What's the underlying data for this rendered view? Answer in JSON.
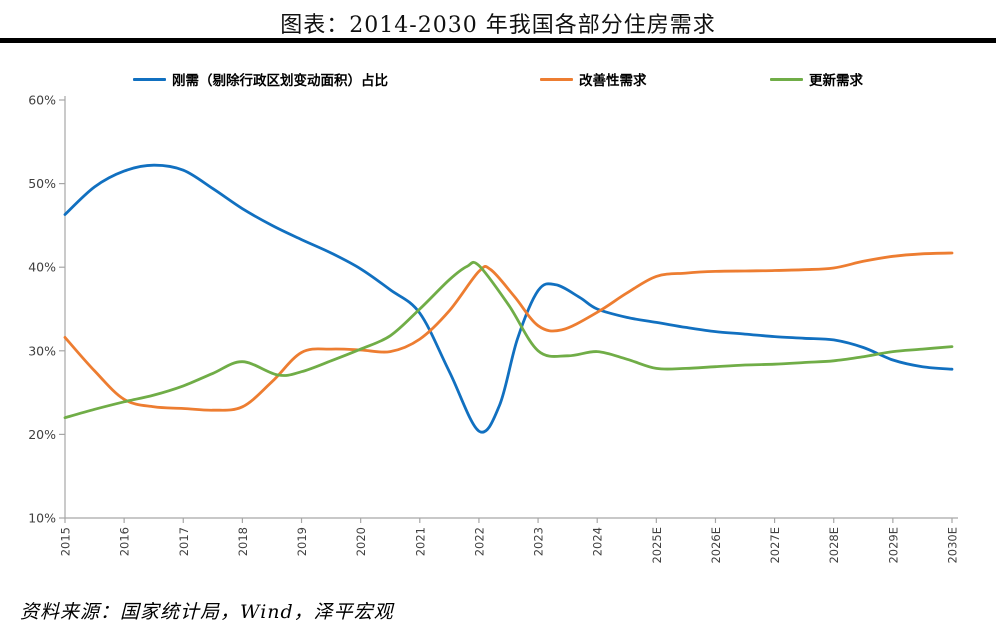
{
  "title": "图表：2014-2030 年我国各部分住房需求",
  "source": "资料来源：国家统计局，Wind，泽平宏观",
  "colors": {
    "series_blue": "#1170C0",
    "series_orange": "#ED7D31",
    "series_green": "#70AD47",
    "axis": "#A6A6A6",
    "tick_label": "#404040",
    "title_rule": "#000000"
  },
  "chart_data": {
    "type": "line",
    "title": "图表：2014-2030 年我国各部分住房需求",
    "smooth": true,
    "grid": false,
    "legend_position": "top",
    "xlabel": "",
    "ylabel": "",
    "x_tick_labels": [
      "2015",
      "2016",
      "2017",
      "2018",
      "2019",
      "2020",
      "2021",
      "2022",
      "2023",
      "2024",
      "2025E",
      "2026E",
      "2027E",
      "2028E",
      "2029E",
      "2030E"
    ],
    "y_tick_labels": [
      "10%",
      "20%",
      "30%",
      "40%",
      "50%",
      "60%"
    ],
    "x_range": [
      2015,
      2030
    ],
    "y_range": [
      10,
      60
    ],
    "y_unit": "%",
    "annual_values": {
      "years": [
        "2015",
        "2016",
        "2017",
        "2018",
        "2019",
        "2020",
        "2021",
        "2022",
        "2023",
        "2024",
        "2025E",
        "2026E",
        "2027E",
        "2028E",
        "2029E",
        "2030E"
      ],
      "刚需（剔除行政区划变动面积）占比": [
        46.3,
        51.5,
        51.6,
        47.0,
        43.3,
        39.8,
        34.5,
        20.4,
        37.2,
        35.0,
        33.4,
        32.3,
        31.7,
        31.3,
        28.9,
        27.8
      ],
      "改善性需求": [
        31.6,
        24.2,
        23.1,
        23.3,
        29.8,
        30.1,
        31.4,
        39.5,
        33.0,
        34.6,
        38.9,
        39.5,
        39.6,
        39.9,
        41.3,
        41.7
      ],
      "更新需求": [
        22.0,
        23.9,
        25.8,
        28.7,
        27.5,
        30.2,
        35.0,
        40.2,
        30.0,
        29.9,
        27.9,
        28.1,
        28.4,
        28.8,
        29.9,
        30.5
      ]
    },
    "series": [
      {
        "name": "刚需（剔除行政区划变动面积）占比",
        "color": "#1170C0",
        "points": [
          [
            2015,
            46.3
          ],
          [
            2015.5,
            49.6
          ],
          [
            2016,
            51.5
          ],
          [
            2016.5,
            52.2
          ],
          [
            2017,
            51.6
          ],
          [
            2017.5,
            49.4
          ],
          [
            2018,
            47.0
          ],
          [
            2018.5,
            45.0
          ],
          [
            2019,
            43.3
          ],
          [
            2019.5,
            41.7
          ],
          [
            2020,
            39.8
          ],
          [
            2020.5,
            37.3
          ],
          [
            2021,
            34.5
          ],
          [
            2021.5,
            27.5
          ],
          [
            2022,
            20.4
          ],
          [
            2022.35,
            23.5
          ],
          [
            2022.65,
            31.4
          ],
          [
            2023,
            37.2
          ],
          [
            2023.3,
            37.9
          ],
          [
            2023.7,
            36.4
          ],
          [
            2024,
            35.0
          ],
          [
            2024.5,
            34.0
          ],
          [
            2025,
            33.4
          ],
          [
            2025.5,
            32.8
          ],
          [
            2026,
            32.3
          ],
          [
            2026.5,
            32.0
          ],
          [
            2027,
            31.7
          ],
          [
            2027.5,
            31.5
          ],
          [
            2028,
            31.3
          ],
          [
            2028.5,
            30.4
          ],
          [
            2029,
            28.9
          ],
          [
            2029.5,
            28.1
          ],
          [
            2030,
            27.8
          ]
        ]
      },
      {
        "name": "改善性需求",
        "color": "#ED7D31",
        "points": [
          [
            2015,
            31.6
          ],
          [
            2015.5,
            27.6
          ],
          [
            2016,
            24.2
          ],
          [
            2016.5,
            23.3
          ],
          [
            2017,
            23.1
          ],
          [
            2017.5,
            22.9
          ],
          [
            2018,
            23.3
          ],
          [
            2018.5,
            26.3
          ],
          [
            2019,
            29.8
          ],
          [
            2019.5,
            30.2
          ],
          [
            2020,
            30.1
          ],
          [
            2020.5,
            29.9
          ],
          [
            2021,
            31.4
          ],
          [
            2021.5,
            34.8
          ],
          [
            2022,
            39.5
          ],
          [
            2022.2,
            39.7
          ],
          [
            2022.6,
            36.5
          ],
          [
            2023,
            33.0
          ],
          [
            2023.4,
            32.5
          ],
          [
            2024,
            34.6
          ],
          [
            2024.5,
            36.9
          ],
          [
            2025,
            38.9
          ],
          [
            2025.5,
            39.3
          ],
          [
            2026,
            39.5
          ],
          [
            2026.5,
            39.55
          ],
          [
            2027,
            39.6
          ],
          [
            2027.5,
            39.7
          ],
          [
            2028,
            39.9
          ],
          [
            2028.5,
            40.7
          ],
          [
            2029,
            41.3
          ],
          [
            2029.5,
            41.6
          ],
          [
            2030,
            41.7
          ]
        ]
      },
      {
        "name": "更新需求",
        "color": "#70AD47",
        "points": [
          [
            2015,
            22.0
          ],
          [
            2015.5,
            23.0
          ],
          [
            2016,
            23.9
          ],
          [
            2016.5,
            24.7
          ],
          [
            2017,
            25.8
          ],
          [
            2017.5,
            27.3
          ],
          [
            2018,
            28.7
          ],
          [
            2018.6,
            27.1
          ],
          [
            2019,
            27.5
          ],
          [
            2019.5,
            28.8
          ],
          [
            2020,
            30.2
          ],
          [
            2020.5,
            31.8
          ],
          [
            2021,
            35.0
          ],
          [
            2021.5,
            38.5
          ],
          [
            2021.8,
            40.1
          ],
          [
            2022,
            40.2
          ],
          [
            2022.5,
            35.5
          ],
          [
            2023,
            30.0
          ],
          [
            2023.5,
            29.4
          ],
          [
            2024,
            29.9
          ],
          [
            2024.5,
            29.0
          ],
          [
            2025,
            27.9
          ],
          [
            2025.5,
            27.9
          ],
          [
            2026,
            28.1
          ],
          [
            2026.5,
            28.3
          ],
          [
            2027,
            28.4
          ],
          [
            2027.5,
            28.6
          ],
          [
            2028,
            28.8
          ],
          [
            2028.5,
            29.3
          ],
          [
            2029,
            29.9
          ],
          [
            2029.5,
            30.2
          ],
          [
            2030,
            30.5
          ]
        ]
      }
    ]
  }
}
